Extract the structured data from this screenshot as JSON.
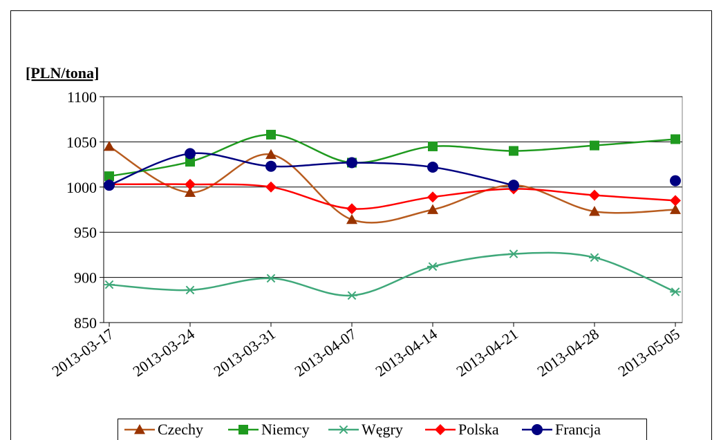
{
  "chart_data": {
    "type": "line",
    "y_label": "[PLN/tona]",
    "categories": [
      "2013-03-17",
      "2013-03-24",
      "2013-03-31",
      "2013-04-07",
      "2013-04-14",
      "2013-04-21",
      "2013-04-28",
      "2013-05-05"
    ],
    "series": [
      {
        "name": "Czechy",
        "color": "#993300",
        "line_color": "#b85c1f",
        "marker": "triangle",
        "values": [
          1045,
          994,
          1036,
          964,
          975,
          1002,
          973,
          975
        ]
      },
      {
        "name": "Niemcy",
        "color": "#1f9a1f",
        "line_color": "#1f9a1f",
        "marker": "square",
        "values": [
          1012,
          1028,
          1058,
          1027,
          1045,
          1040,
          1046,
          1053
        ]
      },
      {
        "name": "Węgry",
        "color": "#3fa87a",
        "line_color": "#3fa87a",
        "marker": "star",
        "values": [
          892,
          886,
          899,
          880,
          912,
          926,
          922,
          884
        ]
      },
      {
        "name": "Polska",
        "color": "#ff0000",
        "line_color": "#ff0000",
        "marker": "diamond",
        "values": [
          1003,
          1003,
          1000,
          976,
          989,
          998,
          991,
          985
        ]
      },
      {
        "name": "Francja",
        "color": "#000080",
        "line_color": "#000080",
        "marker": "circle",
        "values": [
          1002,
          1037,
          1023,
          1027,
          1022,
          1002,
          null,
          1007
        ]
      }
    ],
    "ylim": [
      850,
      1100
    ],
    "yticks": [
      850,
      900,
      950,
      1000,
      1050,
      1100
    ],
    "grid": true,
    "legend": "bottom"
  }
}
